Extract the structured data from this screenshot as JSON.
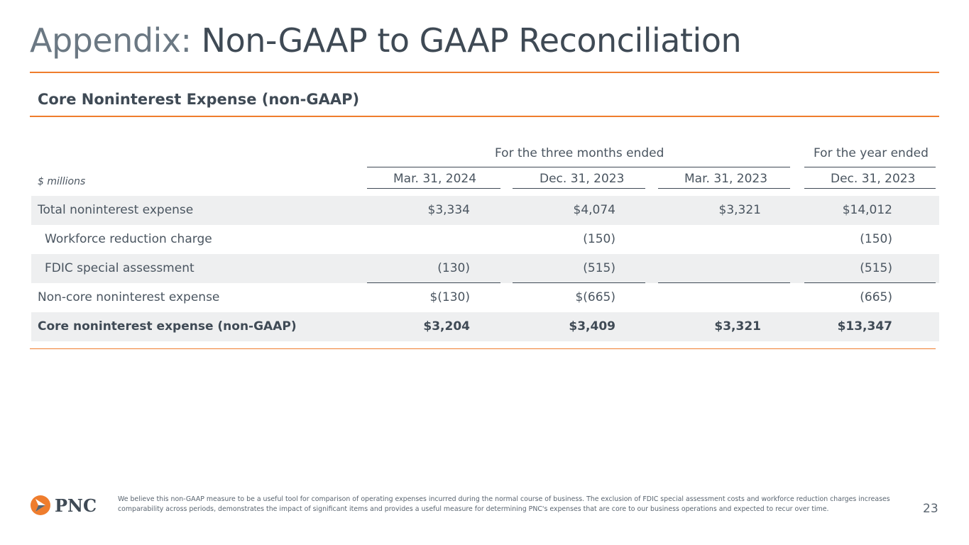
{
  "title": {
    "prefix": "Appendix:",
    "main": "Non-GAAP to GAAP Reconciliation"
  },
  "section_title": "Core Noninterest Expense (non-GAAP)",
  "table": {
    "group_headers": {
      "three_months": "For the three months ended",
      "year": "For the year ended"
    },
    "units": "$ millions",
    "columns": [
      "Mar. 31, 2024",
      "Dec. 31, 2023",
      "Mar. 31, 2023",
      "Dec. 31, 2023"
    ],
    "rows": [
      {
        "label": "Total noninterest expense",
        "values": [
          "$3,334",
          "$4,074",
          "$3,321",
          "$14,012"
        ]
      },
      {
        "label": "Workforce reduction charge",
        "values": [
          "",
          "(150)",
          "",
          "(150)"
        ]
      },
      {
        "label": "FDIC special assessment",
        "values": [
          "(130)",
          "(515)",
          "",
          "(515)"
        ]
      },
      {
        "label": "Non-core noninterest expense",
        "values": [
          "$(130)",
          "$(665)",
          "",
          "(665)"
        ]
      },
      {
        "label": "Core noninterest expense (non-GAAP)",
        "values": [
          "$3,204",
          "$3,409",
          "$3,321",
          "$13,347"
        ]
      }
    ]
  },
  "footer": {
    "logo_text": "PNC",
    "note": "We believe this non-GAAP measure to be a useful tool for comparison of operating expenses incurred during the normal course of business. The exclusion of FDIC special assessment costs and workforce reduction charges increases comparability across periods, demonstrates the impact of significant items and provides a useful measure for determining PNC's expenses that are core to our business operations and expected to recur over time.",
    "page_number": "23"
  },
  "colors": {
    "accent": "#ef7d2d",
    "text": "#4a5560",
    "shade": "#eeeff0"
  }
}
